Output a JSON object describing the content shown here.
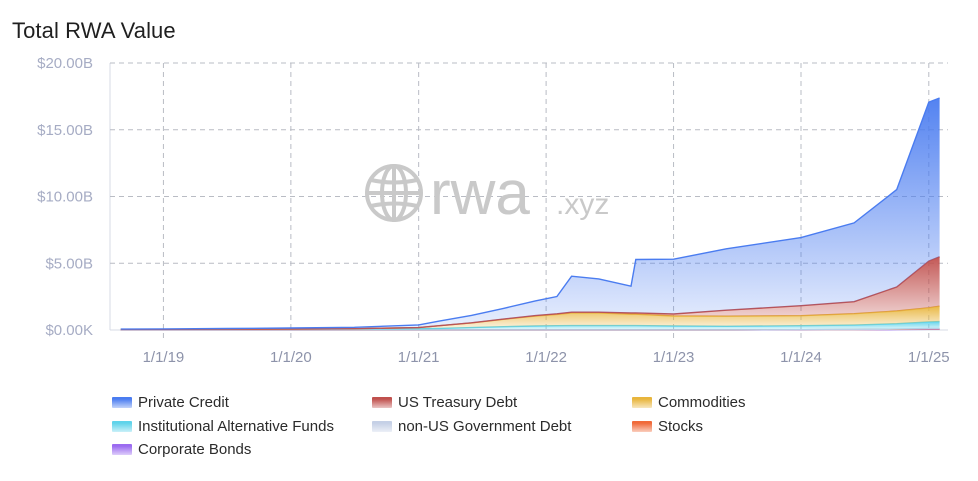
{
  "title": "Total RWA Value",
  "watermark": {
    "brand": "rwa",
    "suffix": ".xyz",
    "icon": "globe-icon"
  },
  "chart_data": {
    "type": "area",
    "stacked": true,
    "title": "Total RWA Value",
    "xlabel": "",
    "ylabel": "",
    "x_ticks": [
      "1/1/19",
      "1/1/20",
      "1/1/21",
      "1/1/22",
      "1/1/23",
      "1/1/24",
      "1/1/25"
    ],
    "y_ticks": [
      "$0.00K",
      "$5.00B",
      "$10.00B",
      "$15.00B",
      "$20.00B"
    ],
    "ylim": [
      0,
      20
    ],
    "y_unit": "billions USD",
    "grid": true,
    "legend_position": "bottom",
    "x": [
      "2018-09-01",
      "2019-01-01",
      "2019-07-01",
      "2020-01-01",
      "2020-07-01",
      "2021-01-01",
      "2021-03-01",
      "2021-06-01",
      "2021-09-01",
      "2021-12-01",
      "2022-02-01",
      "2022-03-15",
      "2022-06-01",
      "2022-09-01",
      "2022-09-15",
      "2023-01-01",
      "2023-06-01",
      "2024-01-01",
      "2024-06-01",
      "2024-10-01",
      "2025-01-01",
      "2025-02-01"
    ],
    "series": [
      {
        "name": "Corporate Bonds",
        "color": "#9b6bf0",
        "values": [
          0,
          0,
          0,
          0,
          0,
          0,
          0,
          0,
          0,
          0,
          0,
          0,
          0,
          0,
          0,
          0,
          0,
          0.01,
          0.02,
          0.03,
          0.05,
          0.05
        ]
      },
      {
        "name": "Stocks",
        "color": "#f06a3a",
        "values": [
          0,
          0,
          0,
          0,
          0,
          0,
          0,
          0,
          0,
          0,
          0,
          0,
          0,
          0,
          0,
          0,
          0,
          0.01,
          0.01,
          0.02,
          0.03,
          0.03
        ]
      },
      {
        "name": "non-US Government Debt",
        "color": "#c5d0e6",
        "values": [
          0,
          0,
          0,
          0,
          0,
          0,
          0,
          0,
          0,
          0,
          0,
          0,
          0,
          0,
          0,
          0,
          0,
          0,
          0.01,
          0.02,
          0.03,
          0.03
        ]
      },
      {
        "name": "Institutional Alternative Funds",
        "color": "#5fd3ea",
        "values": [
          0.05,
          0.05,
          0.06,
          0.07,
          0.08,
          0.1,
          0.12,
          0.18,
          0.25,
          0.3,
          0.32,
          0.33,
          0.33,
          0.33,
          0.33,
          0.3,
          0.28,
          0.3,
          0.33,
          0.4,
          0.5,
          0.52
        ]
      },
      {
        "name": "Commodities",
        "color": "#e8b53c",
        "values": [
          0,
          0,
          0,
          0,
          0.02,
          0.08,
          0.2,
          0.35,
          0.55,
          0.75,
          0.85,
          0.95,
          0.95,
          0.85,
          0.85,
          0.75,
          0.75,
          0.75,
          0.85,
          0.95,
          1.05,
          1.15
        ]
      },
      {
        "name": "US Treasury Debt",
        "color": "#c0504d",
        "values": [
          0,
          0,
          0,
          0,
          0,
          0,
          0,
          0.01,
          0.02,
          0.03,
          0.04,
          0.05,
          0.05,
          0.1,
          0.1,
          0.15,
          0.45,
          0.75,
          0.9,
          1.8,
          3.5,
          3.7
        ]
      },
      {
        "name": "Private Credit",
        "color": "#4a7cf0",
        "values": [
          0.02,
          0.03,
          0.05,
          0.08,
          0.1,
          0.2,
          0.35,
          0.55,
          0.8,
          1.1,
          1.3,
          2.7,
          2.5,
          2.0,
          4.0,
          4.1,
          4.6,
          5.1,
          5.9,
          7.3,
          11.9,
          11.9
        ]
      }
    ]
  },
  "legend": [
    {
      "label": "Private Credit",
      "color": "#4a7cf0"
    },
    {
      "label": "US Treasury Debt",
      "color": "#c0504d"
    },
    {
      "label": "Commodities",
      "color": "#e8b53c"
    },
    {
      "label": "Institutional Alternative Funds",
      "color": "#5fd3ea"
    },
    {
      "label": "non-US Government Debt",
      "color": "#c5d0e6"
    },
    {
      "label": "Stocks",
      "color": "#f06a3a"
    },
    {
      "label": "Corporate Bonds",
      "color": "#9b6bf0"
    }
  ]
}
